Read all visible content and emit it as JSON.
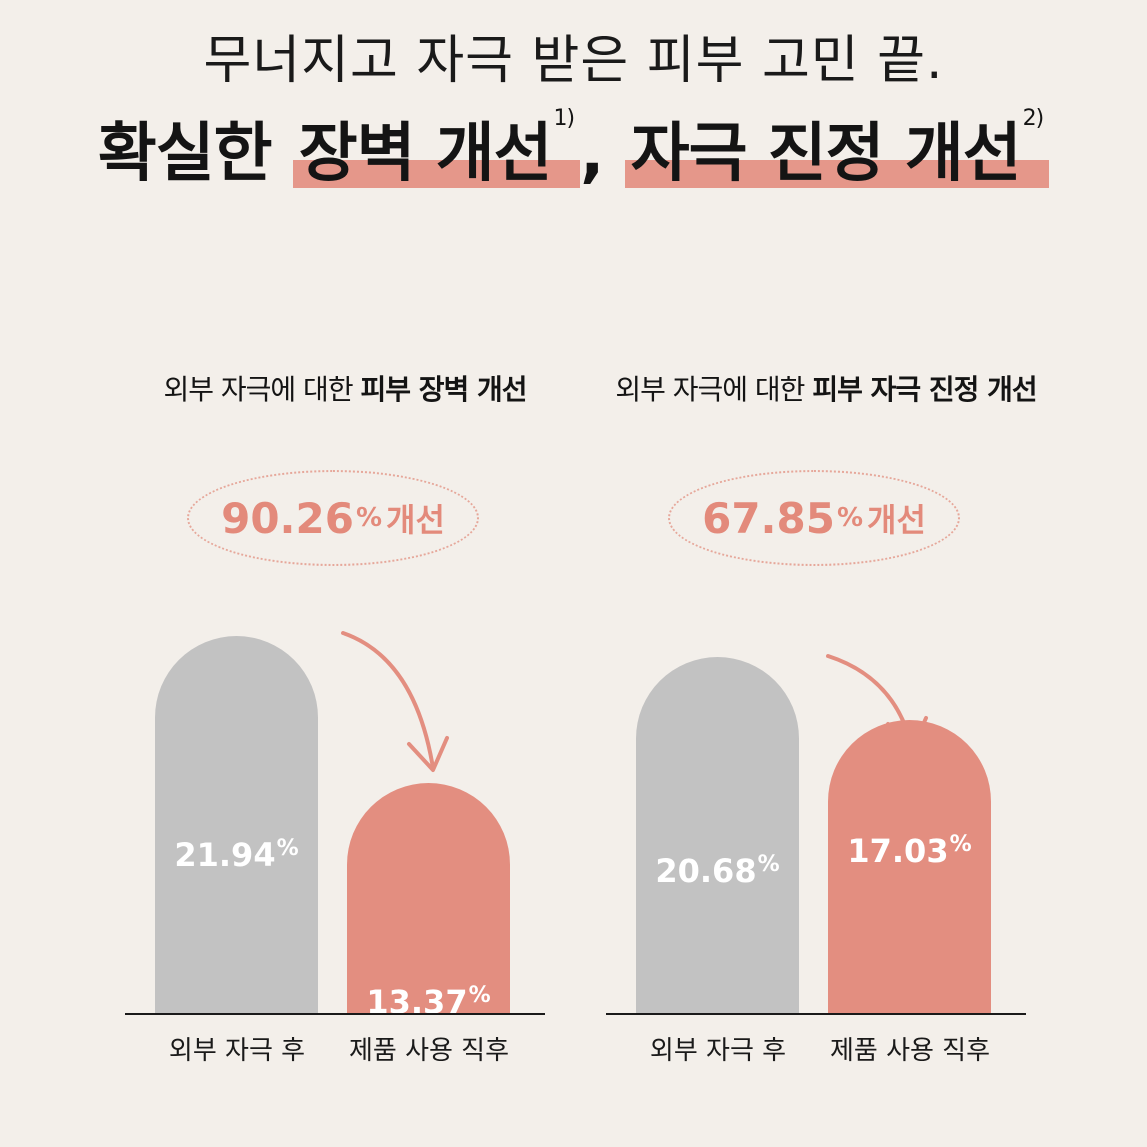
{
  "headline": {
    "line1": "무너지고 자극 받은 피부 고민 끝.",
    "line2_prefix": "확실한 ",
    "line2_highlight1": "장벽 개선",
    "line2_sup1": "1)",
    "line2_comma": ", ",
    "line2_highlight2": "자극 진정 개선",
    "line2_sup2": "2)"
  },
  "colors": {
    "background": "#f3efea",
    "before_bar": "#c2c2c2",
    "after_bar": "#e38e80",
    "accent": "#e38a7b"
  },
  "chart_data": [
    {
      "type": "bar",
      "title_prefix": "외부 자극에 대한 ",
      "title_bold": "피부 장벽 개선",
      "improvement": {
        "value": "90.26",
        "unit": "%",
        "label": "개선"
      },
      "categories": [
        "외부 자극 후",
        "제품 사용 직후"
      ],
      "values": [
        21.94,
        13.37
      ],
      "value_labels": [
        "21.94",
        "13.37"
      ],
      "unit": "%"
    },
    {
      "type": "bar",
      "title_prefix": "외부 자극에 대한 ",
      "title_bold": "피부 자극 진정 개선",
      "improvement": {
        "value": "67.85",
        "unit": "%",
        "label": "개선"
      },
      "categories": [
        "외부 자극 후",
        "제품 사용 직후"
      ],
      "values": [
        20.68,
        17.03
      ],
      "value_labels": [
        "20.68",
        "17.03"
      ],
      "unit": "%"
    }
  ]
}
